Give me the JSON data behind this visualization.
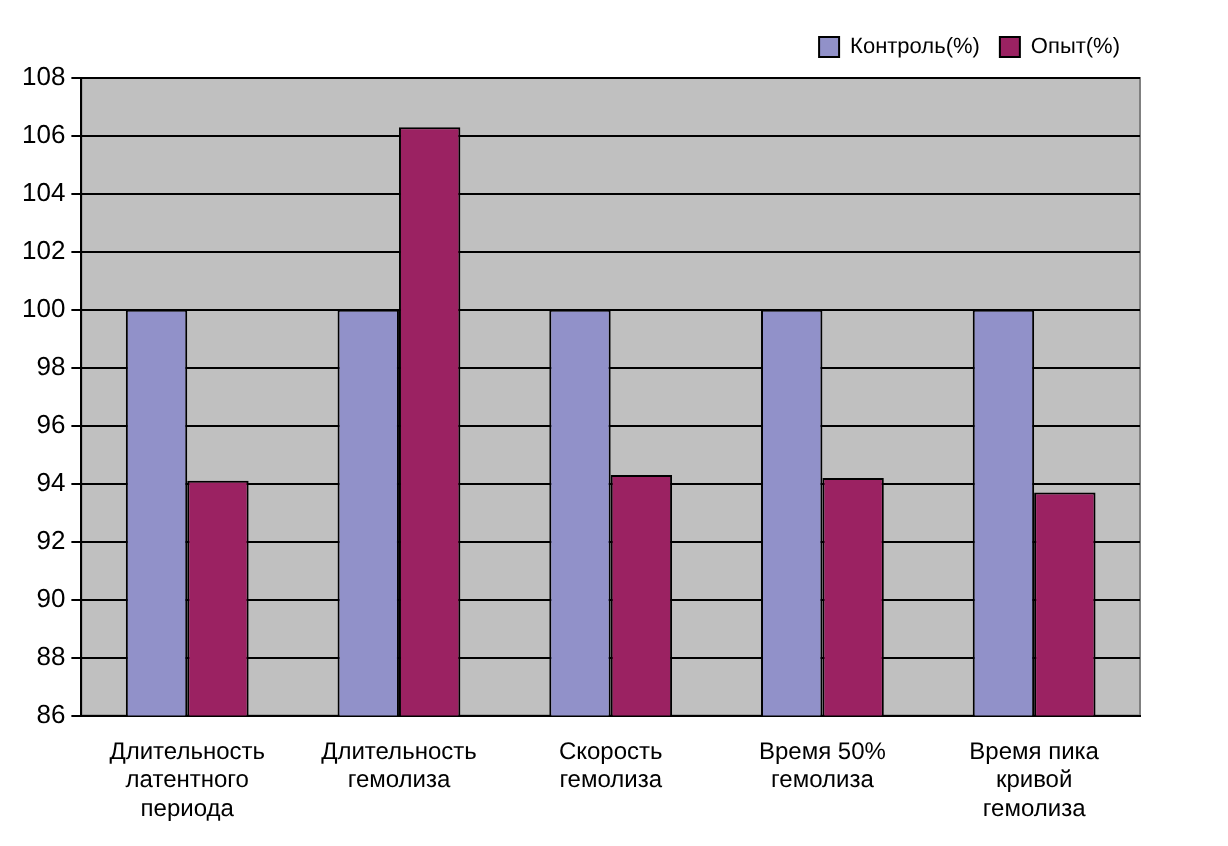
{
  "chart_data": {
    "type": "bar",
    "categories": [
      "Длительность латентного периода",
      "Длительность гемолиза",
      "Скорость гемолиза",
      "Время 50% гемолиза",
      "Время пика кривой гемолиза"
    ],
    "series": [
      {
        "name": "Контроль(%)",
        "color": "#9191c9",
        "values": [
          100,
          100,
          100,
          100,
          100
        ]
      },
      {
        "name": "Опыт(%)",
        "color": "#9b2262",
        "values": [
          94.1,
          106.3,
          94.3,
          94.2,
          93.7
        ]
      }
    ],
    "ylim": [
      86,
      108
    ],
    "yticks": [
      86,
      88,
      90,
      92,
      94,
      96,
      98,
      100,
      102,
      104,
      106,
      108
    ],
    "grid": "y",
    "legend": "top right"
  }
}
